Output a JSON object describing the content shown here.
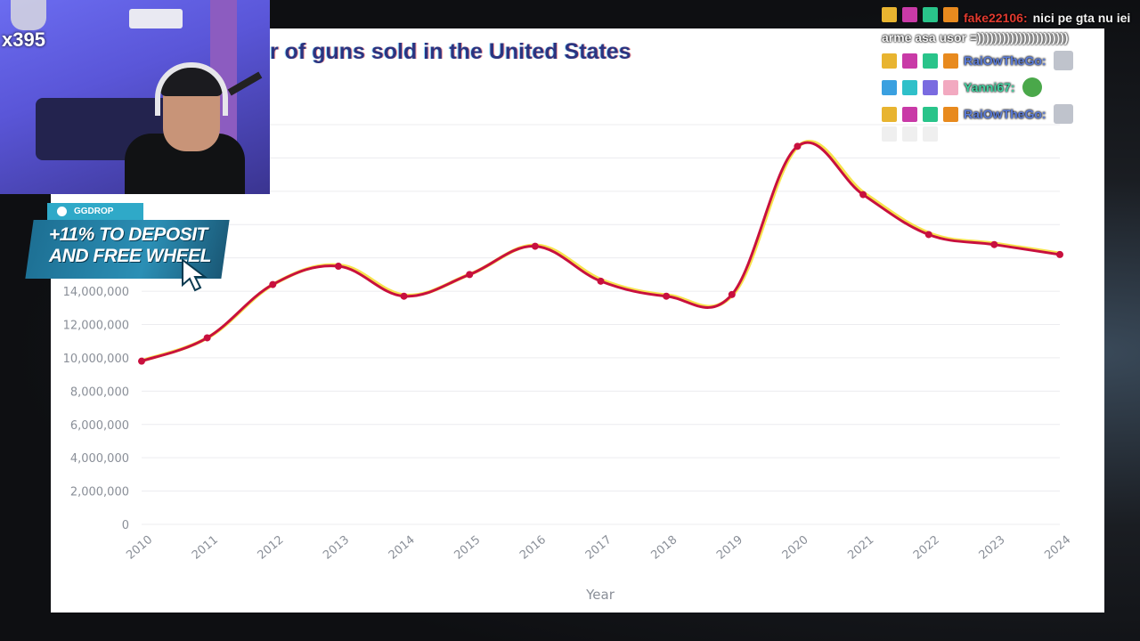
{
  "chart": {
    "title": "r of guns sold in the United States",
    "xlabel": "Year"
  },
  "chart_data": {
    "type": "line",
    "title": "r of guns sold in the United States",
    "xlabel": "Year",
    "ylabel": "",
    "x": [
      "2010",
      "2011",
      "2012",
      "2013",
      "2014",
      "2015",
      "2016",
      "2017",
      "2018",
      "2019",
      "2020",
      "2021",
      "2022",
      "2023",
      "2024"
    ],
    "series": [
      {
        "values": [
          9800000,
          11200000,
          14400000,
          15500000,
          13700000,
          15000000,
          16700000,
          14600000,
          13700000,
          13800000,
          22700000,
          19800000,
          17400000,
          16800000,
          16200000
        ]
      }
    ],
    "yticks": [
      "0",
      "2,000,000",
      "4,000,000",
      "6,000,000",
      "8,000,000",
      "10,000,000",
      "12,000,000",
      "14,000,000"
    ],
    "ylim": [
      0,
      24000000
    ],
    "grid": true,
    "line_color": "#c8103e",
    "point_color": "#c8103e"
  },
  "webcam": {
    "counter": "x395"
  },
  "ad": {
    "tag": "GGDROP",
    "line1": "+11% TO DEPOSIT",
    "line2": "AND FREE WHEEL"
  },
  "chat": {
    "messages": [
      {
        "user": "fake22106:",
        "user_color": "#e03a2f",
        "text": "nici pe gta nu iei arme asa usor =))))))))))))))))))))))"
      },
      {
        "user": "RaiOwTheGo:",
        "user_color": "#5a7bd8",
        "text": ""
      },
      {
        "user": "Yanni67:",
        "user_color": "#3fd2a0",
        "text": ""
      },
      {
        "user": "RaiOwTheGo:",
        "user_color": "#5a7bd8",
        "text": ""
      }
    ]
  }
}
